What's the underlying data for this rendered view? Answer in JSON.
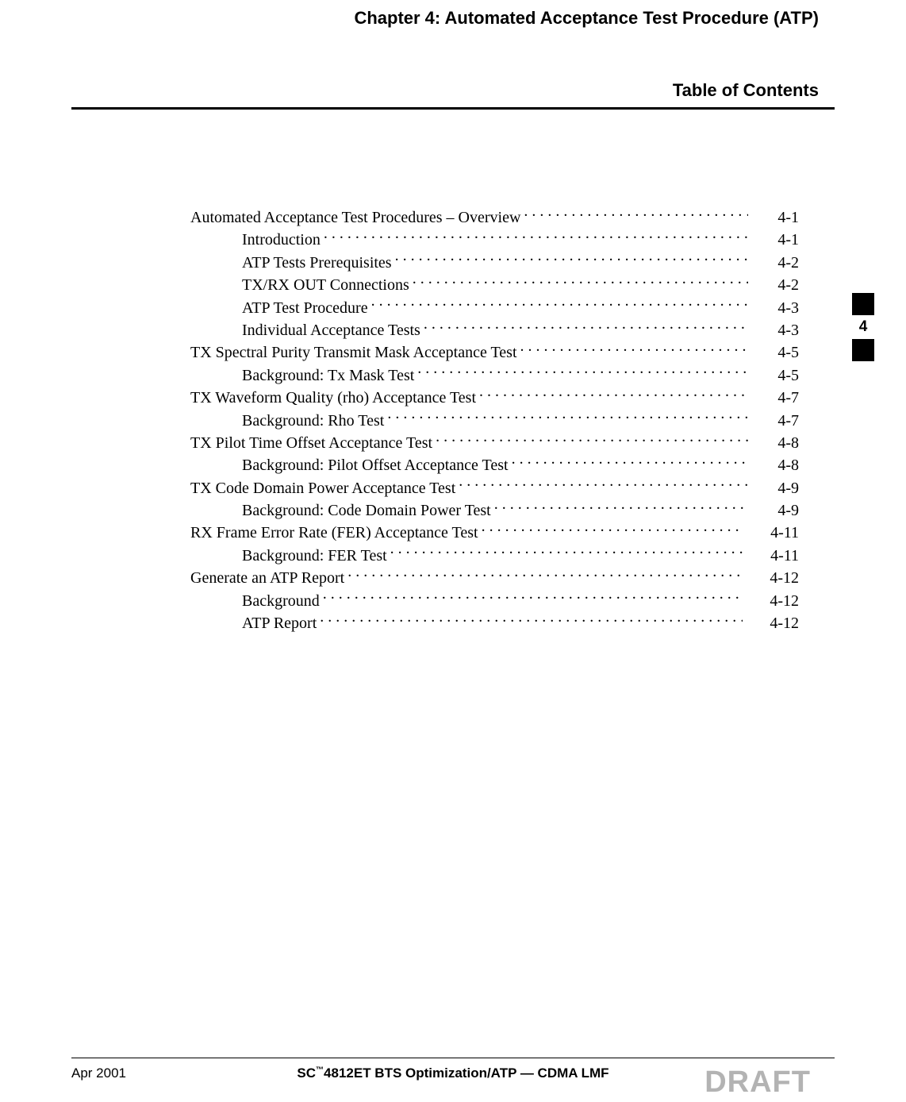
{
  "chapter_title": "Chapter 4: Automated Acceptance Test Procedure (ATP)",
  "toc_title": "Table of Contents",
  "side_tab": "4",
  "footer": {
    "date": "Apr 2001",
    "center_prefix": "SC",
    "center_tm": "™",
    "center_suffix": "4812ET BTS Optimization/ATP — CDMA LMF",
    "draft": "DRAFT"
  },
  "toc": [
    {
      "label": "Automated Acceptance Test Procedures – Overview",
      "page": "4-1",
      "level": 0
    },
    {
      "label": "Introduction",
      "page": "4-1",
      "level": 1
    },
    {
      "label": "ATP Tests Prerequisites",
      "page": "4-2",
      "level": 1
    },
    {
      "label": "TX/RX OUT Connections",
      "page": "4-2",
      "level": 1
    },
    {
      "label": "ATP Test Procedure",
      "page": "4-3",
      "level": 1
    },
    {
      "label": "Individual Acceptance Tests",
      "page": "4-3",
      "level": 1
    },
    {
      "label": "TX Spectral Purity Transmit Mask Acceptance Test",
      "page": "4-5",
      "level": 0
    },
    {
      "label": "Background: Tx Mask Test",
      "page": "4-5",
      "level": 1
    },
    {
      "label": "TX Waveform Quality (rho) Acceptance Test",
      "page": "4-7",
      "level": 0
    },
    {
      "label": "Background: Rho Test",
      "page": "4-7",
      "level": 1
    },
    {
      "label": "TX Pilot Time Offset Acceptance Test",
      "page": "4-8",
      "level": 0
    },
    {
      "label": "Background: Pilot Offset Acceptance Test",
      "page": "4-8",
      "level": 1
    },
    {
      "label": "TX Code Domain Power Acceptance Test",
      "page": "4-9",
      "level": 0
    },
    {
      "label": "Background: Code Domain Power Test",
      "page": "4-9",
      "level": 1
    },
    {
      "label": "RX Frame Error Rate (FER) Acceptance Test",
      "page": "4-11",
      "level": 0
    },
    {
      "label": "Background: FER Test",
      "page": "4-11",
      "level": 1
    },
    {
      "label": "Generate an ATP Report",
      "page": "4-12",
      "level": 0
    },
    {
      "label": "Background",
      "page": "4-12",
      "level": 1
    },
    {
      "label": "ATP Report",
      "page": "4-12",
      "level": 1
    }
  ]
}
